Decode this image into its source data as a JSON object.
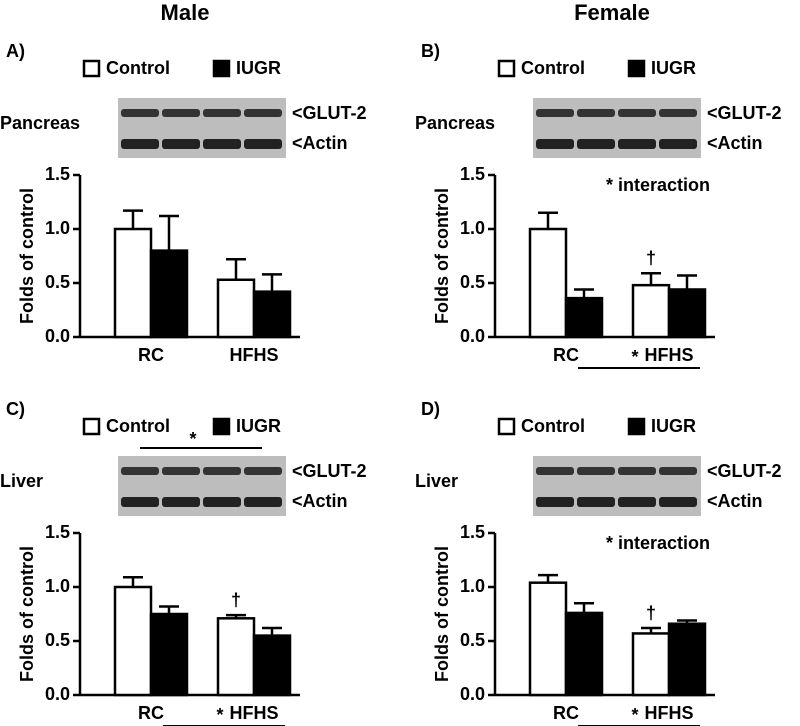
{
  "headers": [
    "Male",
    "Female"
  ],
  "chart_data": [
    {
      "type": "bar",
      "panel": "A)",
      "tissue": "Pancreas",
      "blot_labels": [
        "<GLUT-2",
        "<Actin"
      ],
      "categories": [
        "RC",
        "HFHS"
      ],
      "y_label": "Folds of control",
      "series": [
        {
          "name": "Control",
          "color": "#ffffff",
          "values": [
            1.0,
            0.53
          ],
          "errors": [
            0.17,
            0.19
          ]
        },
        {
          "name": "IUGR",
          "color": "#000000",
          "values": [
            0.8,
            0.42
          ],
          "errors": [
            0.32,
            0.16
          ]
        }
      ],
      "ylim": [
        0,
        1.5
      ],
      "yticks": [
        {
          "value": 0,
          "label": "0.0"
        },
        {
          "value": 0.5,
          "label": "0.5"
        },
        {
          "value": 1,
          "label": "1.0"
        },
        {
          "value": 1.5,
          "label": "1.5"
        }
      ]
    },
    {
      "type": "bar",
      "panel": "B)",
      "tissue": "Pancreas",
      "blot_labels": [
        "<GLUT-2",
        "<Actin"
      ],
      "categories": [
        "RC",
        "HFHS"
      ],
      "y_label": "Folds of control",
      "series": [
        {
          "name": "Control",
          "color": "#ffffff",
          "values": [
            1.0,
            0.48
          ],
          "errors": [
            0.15,
            0.11
          ]
        },
        {
          "name": "IUGR",
          "color": "#000000",
          "values": [
            0.36,
            0.44
          ],
          "errors": [
            0.08,
            0.13
          ]
        }
      ],
      "ylim": [
        0,
        1.5
      ],
      "yticks": [
        {
          "value": 0,
          "label": "0.0"
        },
        {
          "value": 0.5,
          "label": "0.5"
        },
        {
          "value": 1,
          "label": "1.0"
        },
        {
          "value": 1.5,
          "label": "1.5"
        }
      ],
      "note": "* interaction",
      "dagger": "†",
      "axis_star": "*"
    },
    {
      "type": "bar",
      "panel": "C)",
      "tissue": "Liver",
      "blot_labels": [
        "<GLUT-2",
        "<Actin"
      ],
      "categories": [
        "RC",
        "HFHS"
      ],
      "y_label": "Folds of control",
      "series": [
        {
          "name": "Control",
          "color": "#ffffff",
          "values": [
            1.0,
            0.71
          ],
          "errors": [
            0.09,
            0.03
          ]
        },
        {
          "name": "IUGR",
          "color": "#000000",
          "values": [
            0.75,
            0.55
          ],
          "errors": [
            0.07,
            0.07
          ]
        }
      ],
      "ylim": [
        0,
        1.5
      ],
      "yticks": [
        {
          "value": 0,
          "label": "0.0"
        },
        {
          "value": 0.5,
          "label": "0.5"
        },
        {
          "value": 1,
          "label": "1.0"
        },
        {
          "value": 1.5,
          "label": "1.5"
        }
      ],
      "dagger": "†",
      "axis_star": "*",
      "blot_star": "*"
    },
    {
      "type": "bar",
      "panel": "D)",
      "tissue": "Liver",
      "blot_labels": [
        "<GLUT-2",
        "<Actin"
      ],
      "categories": [
        "RC",
        "HFHS"
      ],
      "y_label": "Folds of control",
      "series": [
        {
          "name": "Control",
          "color": "#ffffff",
          "values": [
            1.04,
            0.57
          ],
          "errors": [
            0.07,
            0.05
          ]
        },
        {
          "name": "IUGR",
          "color": "#000000",
          "values": [
            0.76,
            0.66
          ],
          "errors": [
            0.09,
            0.03
          ]
        }
      ],
      "ylim": [
        0,
        1.5
      ],
      "yticks": [
        {
          "value": 0,
          "label": "0.0"
        },
        {
          "value": 0.5,
          "label": "0.5"
        },
        {
          "value": 1,
          "label": "1.0"
        },
        {
          "value": 1.5,
          "label": "1.5"
        }
      ],
      "note": "* interaction",
      "dagger": "†",
      "axis_star": "*"
    }
  ]
}
